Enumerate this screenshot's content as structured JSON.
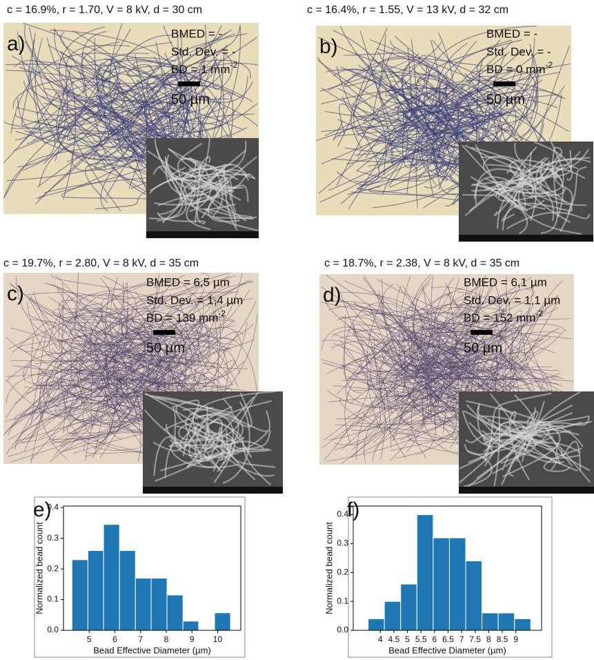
{
  "panels": [
    {
      "header": "c = 16.9%, r = 1.70, V = 8 kV, d = 30 cm",
      "label": "a)",
      "bmed": "BMED = -",
      "std": "Std. Dev. = -",
      "bd": "BD = 1 mm",
      "bd_sup": "-2",
      "scale": "50 µm"
    },
    {
      "header": "c = 16.4%, r = 1.55, V = 13 kV, d = 32 cm",
      "label": "b)",
      "bmed": "BMED = -",
      "std": "Std. Dev. = -",
      "bd": "BD = 0 mm",
      "bd_sup": "-2",
      "scale": "50 µm"
    },
    {
      "header": "c = 19.7%, r = 2.80, V = 8 kV, d = 35 cm",
      "label": "c)",
      "bmed": "BMED = 6,5 µm",
      "std": "Std. Dev. = 1,4 µm",
      "bd": "BD = 139 mm",
      "bd_sup": "-2",
      "scale": "50 µm"
    },
    {
      "header": "c = 18.7%, r = 2.38, V = 8 kV, d = 35 cm",
      "label": "d)",
      "bmed": "BMED = 6,1 µm",
      "std": "Std. Dev. = 1,1 µm",
      "bd": "BD = 152 mm",
      "bd_sup": "-2",
      "scale": "50 µm"
    }
  ],
  "chart_data": [
    {
      "type": "histogram",
      "panel_label": "e)",
      "x_label": "Bead Effective Diameter (µm)",
      "y_label": "Normalized bead count",
      "bins": [
        4.33,
        4.95,
        5.56,
        6.18,
        6.8,
        7.41,
        8.03,
        8.65,
        9.26,
        9.88,
        10.5
      ],
      "values": [
        0.23,
        0.26,
        0.345,
        0.26,
        0.17,
        0.17,
        0.115,
        0.03,
        0,
        0.057
      ],
      "color": "#1f77b4",
      "xlim": [
        4.0,
        10.9
      ],
      "ylim": [
        0,
        0.405
      ],
      "xticks": [
        5,
        6,
        7,
        8,
        9,
        10
      ],
      "yticks": [
        {
          "value": 0,
          "label": "0.0"
        },
        0.1,
        0.2,
        0.3,
        0.4
      ]
    },
    {
      "type": "histogram",
      "panel_label": "f)",
      "x_label": "Bead Effective Diameter (µm)",
      "y_label": "Normalized bead count",
      "bins": [
        3.55,
        4.15,
        4.75,
        5.35,
        5.95,
        6.55,
        7.15,
        7.75,
        8.35,
        8.95,
        9.55
      ],
      "values": [
        0.04,
        0.1,
        0.16,
        0.4,
        0.32,
        0.32,
        0.24,
        0.06,
        0.06,
        0.04
      ],
      "color": "#1f77b4",
      "xlim": [
        3.0,
        9.95
      ],
      "ylim": [
        0,
        0.43
      ],
      "xticks": [
        4,
        4.5,
        5,
        5.5,
        6,
        6.5,
        7,
        7.5,
        8,
        8.5,
        9
      ],
      "yticks": [
        {
          "value": 0,
          "label": "0.0"
        },
        0.1,
        0.2,
        0.3,
        0.4
      ]
    }
  ]
}
